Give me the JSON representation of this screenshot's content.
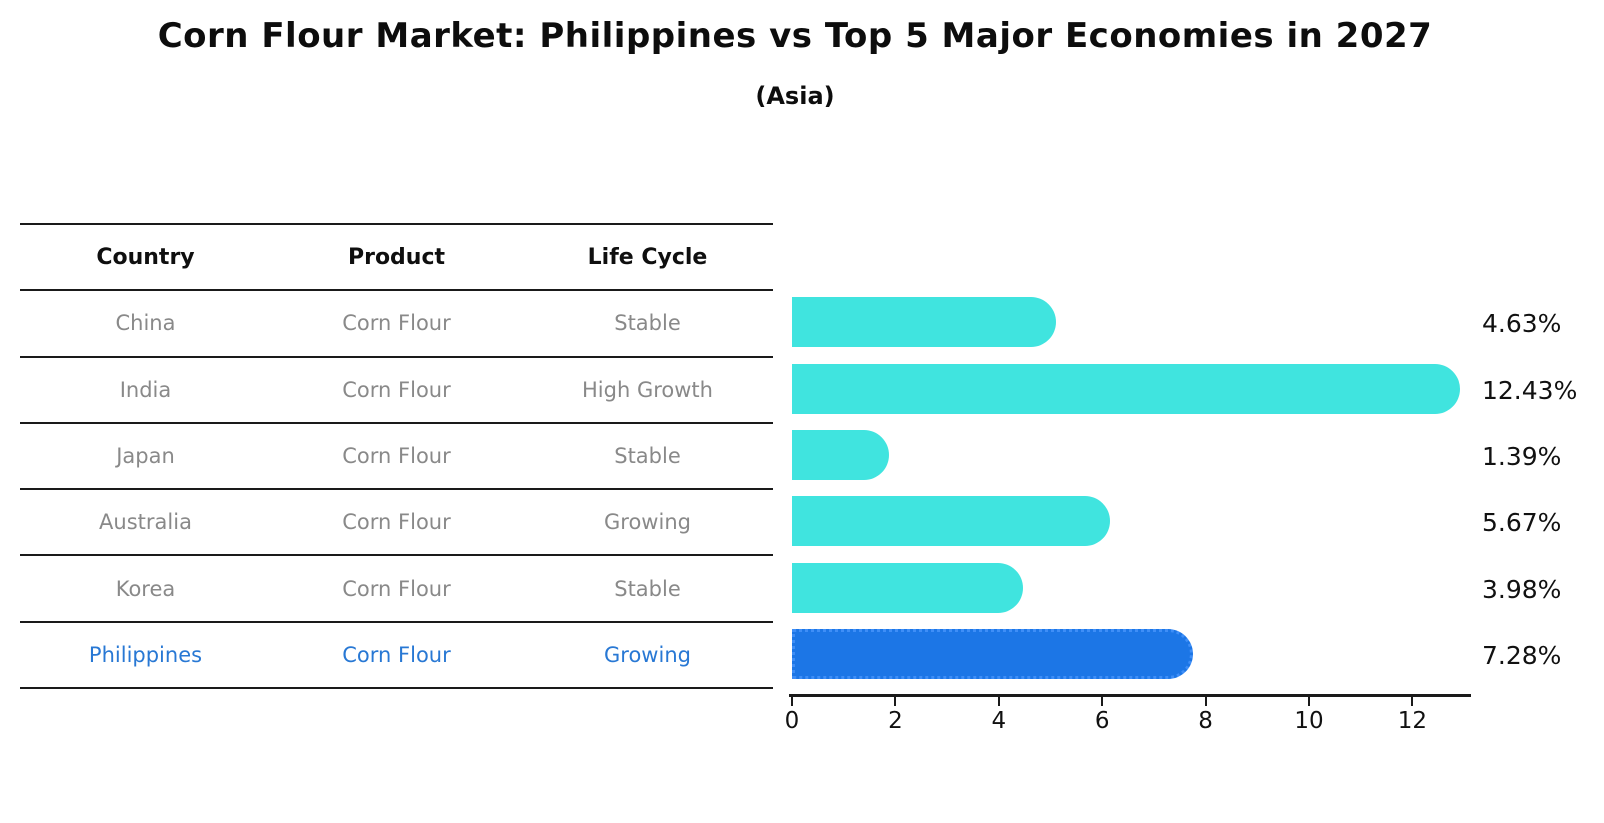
{
  "header": {
    "title": "Corn Flour Market: Philippines vs Top 5 Major Economies in 2027",
    "subtitle": "(Asia)"
  },
  "table": {
    "headers": [
      "Country",
      "Product",
      "Life Cycle"
    ],
    "rows": [
      {
        "country": "China",
        "product": "Corn Flour",
        "life_cycle": "Stable"
      },
      {
        "country": "India",
        "product": "Corn Flour",
        "life_cycle": "High Growth"
      },
      {
        "country": "Japan",
        "product": "Corn Flour",
        "life_cycle": "Stable"
      },
      {
        "country": "Australia",
        "product": "Corn Flour",
        "life_cycle": "Growing"
      },
      {
        "country": "Korea",
        "product": "Corn Flour",
        "life_cycle": "Stable"
      },
      {
        "country": "Philippines",
        "product": "Corn Flour",
        "life_cycle": "Growing"
      }
    ],
    "highlight_row_index": 5,
    "highlight_text_color": "#2878D4",
    "normal_text_color": "#898989"
  },
  "chart_data": {
    "type": "bar",
    "orientation": "horizontal",
    "title": "Corn Flour Market: Philippines vs Top 5 Major Economies in 2027",
    "subtitle": "(Asia)",
    "categories": [
      "China",
      "India",
      "Japan",
      "Australia",
      "Korea",
      "Philippines"
    ],
    "values": [
      4.63,
      12.43,
      1.39,
      5.67,
      3.98,
      7.28
    ],
    "value_labels": [
      "4.63%",
      "12.43%",
      "1.39%",
      "5.67%",
      "3.98%",
      "7.28%"
    ],
    "x_ticks": [
      0,
      2,
      4,
      6,
      8,
      10,
      12
    ],
    "xlim": [
      0,
      13.15
    ],
    "grid": false,
    "legend": false,
    "highlight_index": 5,
    "colors": {
      "bar": "#40E4DF",
      "highlight_bar": "#1C76E6",
      "highlight_edge": "#3E8EF7",
      "axis": "#1a1a1a"
    }
  }
}
